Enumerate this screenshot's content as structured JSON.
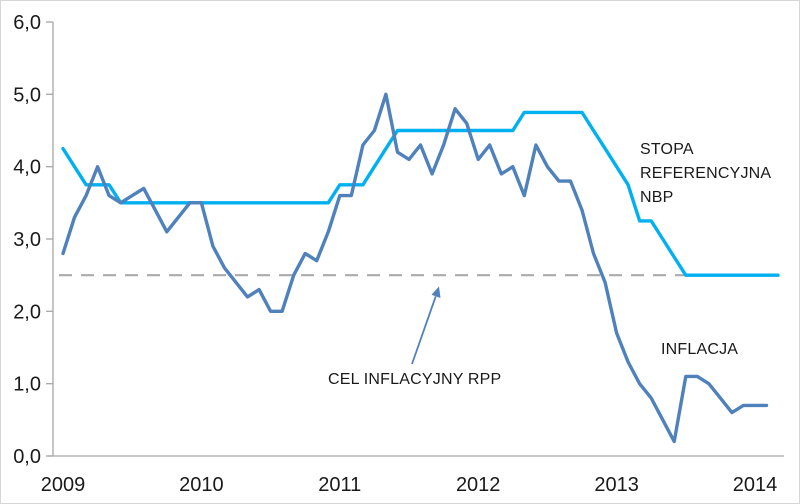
{
  "chart_data": {
    "type": "line",
    "title": "",
    "x_frequency": "monthly",
    "x_start": "2009-01",
    "x_tick_labels": [
      "2009",
      "2010",
      "2011",
      "2012",
      "2013",
      "2014"
    ],
    "y_tick_labels": [
      "0,0",
      "1,0",
      "2,0",
      "3,0",
      "4,0",
      "5,0",
      "6,0"
    ],
    "ylim": [
      0,
      6
    ],
    "grid": false,
    "legend": "inline-text-labels",
    "decimal_separator": ",",
    "series": [
      {
        "name": "STOPA REFERENCYJNA NBP",
        "color": "#00B0F0",
        "values": [
          4.25,
          4.0,
          3.75,
          3.75,
          3.75,
          3.5,
          3.5,
          3.5,
          3.5,
          3.5,
          3.5,
          3.5,
          3.5,
          3.5,
          3.5,
          3.5,
          3.5,
          3.5,
          3.5,
          3.5,
          3.5,
          3.5,
          3.5,
          3.5,
          3.75,
          3.75,
          3.75,
          4.0,
          4.25,
          4.5,
          4.5,
          4.5,
          4.5,
          4.5,
          4.5,
          4.5,
          4.5,
          4.5,
          4.5,
          4.5,
          4.75,
          4.75,
          4.75,
          4.75,
          4.75,
          4.75,
          4.5,
          4.25,
          4.0,
          3.75,
          3.25,
          3.25,
          3.0,
          2.75,
          2.5,
          2.5,
          2.5,
          2.5,
          2.5,
          2.5,
          2.5,
          2.5,
          2.5
        ]
      },
      {
        "name": "INFLACJA",
        "color": "#4F81BD",
        "values": [
          2.8,
          3.3,
          3.6,
          4.0,
          3.6,
          3.5,
          3.6,
          3.7,
          3.4,
          3.1,
          3.3,
          3.5,
          3.5,
          2.9,
          2.6,
          2.4,
          2.2,
          2.3,
          2.0,
          2.0,
          2.5,
          2.8,
          2.7,
          3.1,
          3.6,
          3.6,
          4.3,
          4.5,
          5.0,
          4.2,
          4.1,
          4.3,
          3.9,
          4.3,
          4.8,
          4.6,
          4.1,
          4.3,
          3.9,
          4.0,
          3.6,
          4.3,
          4.0,
          3.8,
          3.8,
          3.4,
          2.8,
          2.4,
          1.7,
          1.3,
          1.0,
          0.8,
          0.5,
          0.2,
          1.1,
          1.1,
          1.0,
          0.8,
          0.6,
          0.7,
          0.7,
          0.7
        ]
      }
    ],
    "reference_line": {
      "label": "CEL INFLACYJNY RPP",
      "value": 2.5,
      "color": "#ABABAB",
      "style": "dashed"
    }
  }
}
